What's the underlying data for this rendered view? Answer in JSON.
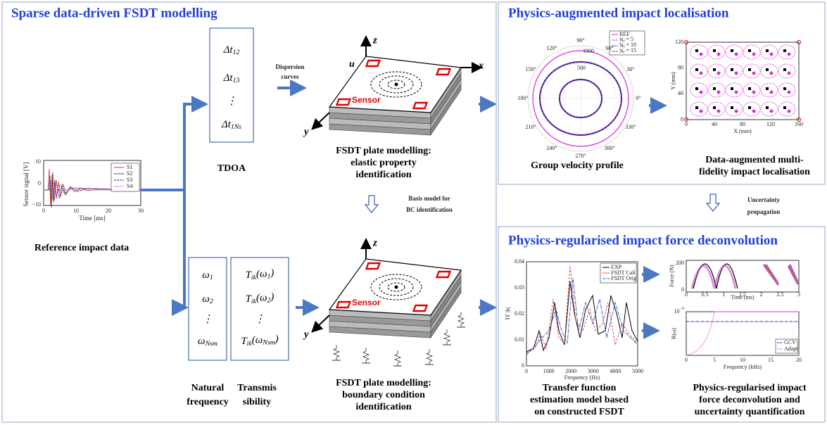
{
  "left": {
    "title": "Sparse data-driven FSDT modelling",
    "signal_plot": {
      "ylabel": "Sensor signal [V]",
      "xlabel": "Time [ms]",
      "yticks": [
        "10",
        "0",
        "−10"
      ],
      "xticks": [
        "0",
        "10",
        "20",
        "30"
      ],
      "legend": [
        "S1",
        "S2",
        "S3",
        "S4"
      ]
    },
    "reference_caption": "Reference impact data",
    "tdoa": [
      [
        "Δt",
        "12"
      ],
      [
        "Δt",
        "13"
      ],
      [
        "⋮"
      ],
      [
        "Δt",
        "1Ns"
      ]
    ],
    "tdoa_caption": "TDOA",
    "dispersion": [
      "Dispersion",
      "curves"
    ],
    "plate_top": {
      "sensor": "Sensor",
      "z": "z",
      "x": "x",
      "y": "y",
      "u": "u",
      "caption": [
        "FSDT plate modelling:",
        "elastic property",
        "identification"
      ]
    },
    "basis": [
      "Basis model for",
      "BC identification"
    ],
    "natural": [
      [
        "ω",
        "1"
      ],
      [
        "ω",
        "2"
      ],
      [
        "⋮"
      ],
      [
        "ω",
        "Nsm"
      ]
    ],
    "transmissibility": [
      [
        "T",
        "ik",
        "(ω",
        "1",
        ")"
      ],
      [
        "T",
        "ik",
        "(ω",
        "2",
        ")"
      ],
      [
        "⋮"
      ],
      [
        "T",
        "ik",
        "(ω",
        "Nsm",
        ")"
      ]
    ],
    "natural_caption": [
      "Natural",
      "frequency"
    ],
    "transmis_caption": [
      "Transmis",
      "sibility"
    ],
    "plate_bottom": {
      "sensor": "Sensor",
      "z": "z",
      "y": "y",
      "caption": [
        "FSDT plate modelling:",
        "boundary condition",
        "identification"
      ]
    }
  },
  "top_right": {
    "title": "Physics-augmented impact localisation",
    "polar": {
      "angles": [
        "90°",
        "120°",
        "150°",
        "180°",
        "210°",
        "240°",
        "270°",
        "300°",
        "330°",
        "0°",
        "30°",
        "60°"
      ],
      "radial": [
        "1000",
        "500"
      ],
      "legend": [
        [
          "REF"
        ],
        [
          "N",
          "f",
          " = 5"
        ],
        [
          "N",
          "f",
          " = 10"
        ],
        [
          "N",
          "f",
          " = 15"
        ]
      ]
    },
    "polar_caption": "Group velocity profile",
    "scatter": {
      "ylabel": "Y (mm)",
      "xlabel": "X (mm)",
      "xticks": [
        "0",
        "40",
        "80",
        "120",
        "160"
      ],
      "yticks": [
        "120",
        "80",
        "40",
        "0"
      ]
    },
    "scatter_caption": [
      "Data-augmented multi-",
      "fidelity impact localisation"
    ]
  },
  "uncertainty": [
    "Uncertainty",
    "propagation"
  ],
  "bottom_right": {
    "title": "Physics-regularised impact force deconvolution",
    "tf_plot": {
      "ylabel": "TF |h|",
      "xlabel": "Frequency (Hz)",
      "yticks": [
        "0.04",
        "0.03",
        "0.02",
        "0.01",
        "0"
      ],
      "xticks": [
        "0",
        "1000",
        "2000",
        "3000",
        "4000",
        "5000"
      ],
      "legend": [
        "EXP",
        "FSDT Cali",
        "FSDT Orig"
      ]
    },
    "tf_caption": [
      "Transfer function",
      "estimation model based",
      "on constructed FSDT"
    ],
    "force_plot": {
      "ylabel": "Force (N)",
      "xlabel": "Time (ms)",
      "yticks": [
        "200",
        "0"
      ],
      "xticks": [
        "0",
        "0.5",
        "1",
        "1.5",
        "2",
        "2.5",
        "3"
      ]
    },
    "r_plot": {
      "ylabel": "R(ω)",
      "xlabel": "Frequency (kHz)",
      "ytick": [
        "10",
        "−5"
      ],
      "xticks": [
        "0",
        "5",
        "10",
        "15",
        "20"
      ],
      "legend": [
        "GCV",
        "Adapt"
      ]
    },
    "deconv_caption": [
      "Physics-regularised impact",
      "force deconvolution and",
      "uncertainty quantification"
    ]
  }
}
